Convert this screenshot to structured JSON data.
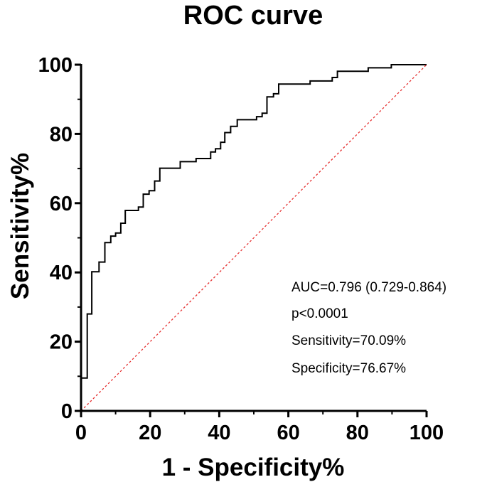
{
  "chart_data": {
    "type": "line",
    "title": "ROC curve",
    "xlabel": "1 - Specificity%",
    "ylabel": "Sensitivity%",
    "xlim": [
      0,
      100
    ],
    "ylim": [
      0,
      100
    ],
    "x_ticks": [
      "0",
      "20",
      "40",
      "60",
      "80",
      "100"
    ],
    "y_ticks": [
      "0",
      "20",
      "40",
      "60",
      "80",
      "100"
    ],
    "grid": false,
    "series": [
      {
        "name": "ROC",
        "style": "step",
        "color": "#000000",
        "points": [
          [
            0,
            0
          ],
          [
            0,
            9.5
          ],
          [
            1.8,
            9.5
          ],
          [
            1.8,
            28
          ],
          [
            3.1,
            28
          ],
          [
            3.1,
            40.2
          ],
          [
            5.2,
            40.2
          ],
          [
            5.2,
            43
          ],
          [
            6.9,
            43
          ],
          [
            6.9,
            48.6
          ],
          [
            8.6,
            48.6
          ],
          [
            8.6,
            50.5
          ],
          [
            10,
            50.5
          ],
          [
            10,
            51.4
          ],
          [
            11.5,
            51.4
          ],
          [
            11.5,
            54.2
          ],
          [
            12.8,
            54.2
          ],
          [
            12.8,
            57.9
          ],
          [
            16.6,
            57.9
          ],
          [
            16.6,
            58.9
          ],
          [
            18,
            58.9
          ],
          [
            18,
            62.6
          ],
          [
            19.7,
            62.6
          ],
          [
            19.7,
            63.6
          ],
          [
            21.3,
            63.6
          ],
          [
            21.3,
            66.4
          ],
          [
            22.8,
            66.4
          ],
          [
            22.8,
            70.1
          ],
          [
            28.7,
            70.1
          ],
          [
            28.7,
            72
          ],
          [
            33.3,
            72
          ],
          [
            33.3,
            72.9
          ],
          [
            37.5,
            72.9
          ],
          [
            37.5,
            74.8
          ],
          [
            38.9,
            74.8
          ],
          [
            38.9,
            75.7
          ],
          [
            40.4,
            75.7
          ],
          [
            40.4,
            77.6
          ],
          [
            41.6,
            77.6
          ],
          [
            41.6,
            80.4
          ],
          [
            43.3,
            80.4
          ],
          [
            43.3,
            82.2
          ],
          [
            45.2,
            82.2
          ],
          [
            45.2,
            84.1
          ],
          [
            50.8,
            84.1
          ],
          [
            50.8,
            85
          ],
          [
            52.4,
            85
          ],
          [
            52.4,
            86
          ],
          [
            53.8,
            86
          ],
          [
            53.8,
            90.7
          ],
          [
            55.7,
            90.7
          ],
          [
            55.7,
            91.6
          ],
          [
            57.2,
            91.6
          ],
          [
            57.2,
            94.4
          ],
          [
            66.3,
            94.4
          ],
          [
            66.3,
            95.3
          ],
          [
            72.7,
            95.3
          ],
          [
            72.7,
            96.3
          ],
          [
            74.2,
            96.3
          ],
          [
            74.2,
            98.1
          ],
          [
            83.1,
            98.1
          ],
          [
            83.1,
            99.1
          ],
          [
            89.8,
            99.1
          ],
          [
            89.8,
            100
          ],
          [
            100,
            100
          ]
        ]
      },
      {
        "name": "Reference",
        "style": "dashed",
        "color": "#e53030",
        "points": [
          [
            0,
            0
          ],
          [
            100,
            100
          ]
        ]
      }
    ],
    "annotations": [
      "AUC=0.796 (0.729-0.864)",
      "p<0.0001",
      "Sensitivity=70.09%",
      "Specificity=76.67%"
    ]
  }
}
